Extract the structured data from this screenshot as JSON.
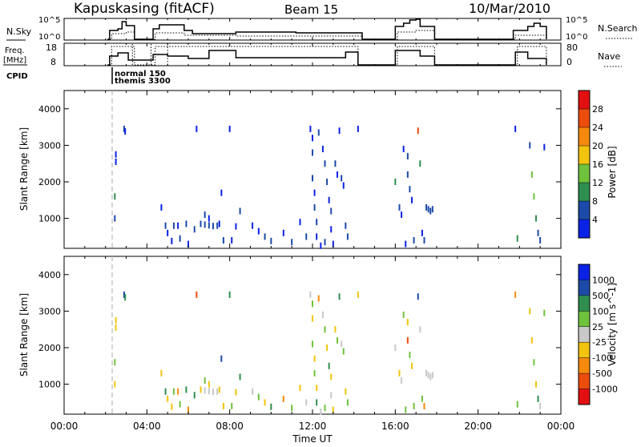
{
  "header": {
    "station": "Kapuskasing (fitACF)",
    "beam": "Beam 15",
    "date": "10/Mar/2010"
  },
  "summary": {
    "nsky_label": "N.Sky",
    "nsky_ticks": [
      "10^5",
      "10^0"
    ],
    "nsearch_label": "N.Search",
    "nsearch_ticks": [
      "10^5",
      "10^0"
    ],
    "freq_label": "Freq.",
    "freq_unit": "[MHz]",
    "freq_ticks": [
      "18",
      "8"
    ],
    "nave_label": "Nave",
    "nave_ticks": [
      "80",
      "0"
    ],
    "cpid_label": "CPID",
    "cpid_entries": [
      "normal 150",
      "themis 3300"
    ]
  },
  "colors": {
    "power": [
      "#0b22e6",
      "#1c4aa8",
      "#2e8f4f",
      "#6fc23b",
      "#f2c40f",
      "#f58a0c",
      "#ec4c0c",
      "#e21010"
    ],
    "velocity": [
      "#e21010",
      "#ec4c0c",
      "#f58a0c",
      "#f2c40f",
      "#c8c8c8",
      "#6fc23b",
      "#2e8f4f",
      "#1c4aa8",
      "#0b22e6"
    ]
  },
  "chart_data": [
    {
      "type": "heatmap",
      "title": "",
      "xlabel": "",
      "ylabel": "Slant Range [km]",
      "xlim": [
        0,
        24
      ],
      "ylim": [
        180,
        4500
      ],
      "yticks": [
        1000,
        2000,
        3000,
        4000
      ],
      "colorbar": {
        "label": "Power [dB]",
        "ticks": [
          "4",
          "8",
          "12",
          "16",
          "20",
          "24",
          "28"
        ],
        "range": [
          0,
          30
        ]
      },
      "points": [
        [
          2.9,
          3450,
          4
        ],
        [
          2.95,
          3380,
          3
        ],
        [
          2.5,
          2750,
          2
        ],
        [
          2.5,
          2550,
          2
        ],
        [
          2.45,
          1600,
          10
        ],
        [
          2.45,
          1000,
          4
        ],
        [
          4.7,
          1300,
          3
        ],
        [
          4.9,
          800,
          4
        ],
        [
          5.0,
          600,
          3
        ],
        [
          5.3,
          800,
          4
        ],
        [
          5.5,
          800,
          3
        ],
        [
          5.9,
          850,
          4
        ],
        [
          5.2,
          380,
          3
        ],
        [
          5.6,
          450,
          4
        ],
        [
          6.0,
          300,
          3
        ],
        [
          6.3,
          700,
          4
        ],
        [
          6.6,
          850,
          5
        ],
        [
          6.8,
          830,
          6
        ],
        [
          7.0,
          810,
          5
        ],
        [
          7.2,
          790,
          6
        ],
        [
          7.4,
          800,
          5
        ],
        [
          7.5,
          850,
          3
        ],
        [
          7.0,
          1000,
          3
        ],
        [
          6.8,
          1100,
          4
        ],
        [
          7.6,
          1700,
          3
        ],
        [
          7.7,
          400,
          4
        ],
        [
          8.1,
          400,
          3
        ],
        [
          8.3,
          780,
          3
        ],
        [
          6.4,
          3450,
          3
        ],
        [
          8.0,
          3450,
          2
        ],
        [
          8.5,
          1200,
          4
        ],
        [
          9.1,
          800,
          3
        ],
        [
          9.4,
          650,
          3
        ],
        [
          9.7,
          500,
          4
        ],
        [
          10.0,
          380,
          5
        ],
        [
          10.6,
          600,
          3
        ],
        [
          11.0,
          350,
          4
        ],
        [
          11.4,
          900,
          3
        ],
        [
          11.7,
          500,
          4
        ],
        [
          11.9,
          3450,
          2
        ],
        [
          12.0,
          3200,
          3
        ],
        [
          12.0,
          2800,
          4
        ],
        [
          12.0,
          2100,
          5
        ],
        [
          12.1,
          1700,
          3
        ],
        [
          12.1,
          1300,
          4
        ],
        [
          12.2,
          900,
          5
        ],
        [
          12.2,
          500,
          3
        ],
        [
          12.3,
          3350,
          4
        ],
        [
          12.5,
          2900,
          3
        ],
        [
          12.6,
          2500,
          4
        ],
        [
          12.7,
          2000,
          5
        ],
        [
          12.8,
          1500,
          3
        ],
        [
          12.9,
          1200,
          4
        ],
        [
          12.9,
          700,
          3
        ],
        [
          13.1,
          2500,
          4
        ],
        [
          13.2,
          2200,
          3
        ],
        [
          13.4,
          2100,
          5
        ],
        [
          13.5,
          1900,
          3
        ],
        [
          13.6,
          800,
          4
        ],
        [
          13.7,
          500,
          6
        ],
        [
          13.3,
          3400,
          2
        ],
        [
          14.2,
          3450,
          3
        ],
        [
          12.4,
          250,
          3
        ],
        [
          12.6,
          350,
          4
        ],
        [
          13.0,
          300,
          3
        ],
        [
          16.0,
          2000,
          8
        ],
        [
          16.2,
          1300,
          4
        ],
        [
          16.4,
          2900,
          3
        ],
        [
          16.6,
          2700,
          4
        ],
        [
          16.6,
          2200,
          6
        ],
        [
          16.7,
          1800,
          5
        ],
        [
          16.8,
          1500,
          3
        ],
        [
          16.9,
          400,
          4
        ],
        [
          17.1,
          3400,
          24
        ],
        [
          17.2,
          2500,
          10
        ],
        [
          17.3,
          600,
          3
        ],
        [
          17.4,
          400,
          4
        ],
        [
          17.6,
          1250,
          6
        ],
        [
          17.7,
          1200,
          5
        ],
        [
          17.8,
          1250,
          6
        ],
        [
          17.5,
          1300,
          5
        ],
        [
          16.3,
          1100,
          2
        ],
        [
          16.5,
          300,
          3
        ],
        [
          21.8,
          3450,
          3
        ],
        [
          21.9,
          450,
          10
        ],
        [
          22.5,
          3000,
          4
        ],
        [
          22.6,
          2200,
          12
        ],
        [
          22.7,
          1600,
          14
        ],
        [
          22.8,
          1000,
          8
        ],
        [
          22.9,
          600,
          6
        ],
        [
          23.0,
          400,
          4
        ],
        [
          23.2,
          2950,
          3
        ]
      ]
    },
    {
      "type": "heatmap",
      "title": "",
      "xlabel": "Time UT",
      "ylabel": "Slant Range [km]",
      "xlim": [
        0,
        24
      ],
      "ylim": [
        180,
        4500
      ],
      "yticks": [
        1000,
        2000,
        3000,
        4000
      ],
      "xticks": [
        "00:00",
        "04:00",
        "08:00",
        "12:00",
        "16:00",
        "20:00",
        "00:00"
      ],
      "colorbar": {
        "label": "Velocity [m s^-1]",
        "ticks": [
          "-1000",
          "-500",
          "-100",
          "-25",
          "25",
          "100",
          "500",
          "1000"
        ],
        "range": [
          -1500,
          1500
        ]
      },
      "points": [
        [
          2.9,
          3450,
          900
        ],
        [
          2.95,
          3380,
          700
        ],
        [
          2.5,
          2750,
          -500
        ],
        [
          2.5,
          2550,
          -400
        ],
        [
          2.45,
          1600,
          200
        ],
        [
          2.45,
          1000,
          -300
        ],
        [
          4.7,
          1300,
          -200
        ],
        [
          4.9,
          800,
          600
        ],
        [
          5.0,
          600,
          -400
        ],
        [
          5.3,
          800,
          300
        ],
        [
          5.5,
          800,
          -700
        ],
        [
          5.9,
          850,
          500
        ],
        [
          5.2,
          380,
          -300
        ],
        [
          5.6,
          450,
          200
        ],
        [
          6.0,
          300,
          -600
        ],
        [
          6.3,
          700,
          800
        ],
        [
          6.6,
          850,
          -200
        ],
        [
          6.8,
          830,
          -150
        ],
        [
          7.0,
          810,
          50
        ],
        [
          7.2,
          790,
          -80
        ],
        [
          7.4,
          800,
          120
        ],
        [
          7.5,
          850,
          -500
        ],
        [
          7.0,
          1000,
          -300
        ],
        [
          6.8,
          1100,
          400
        ],
        [
          7.6,
          1700,
          900
        ],
        [
          7.7,
          400,
          -400
        ],
        [
          8.1,
          400,
          300
        ],
        [
          8.3,
          780,
          -200
        ],
        [
          6.4,
          3450,
          -900
        ],
        [
          8.0,
          3450,
          700
        ],
        [
          8.5,
          1200,
          500
        ],
        [
          9.1,
          800,
          -100
        ],
        [
          9.4,
          650,
          300
        ],
        [
          9.7,
          500,
          -200
        ],
        [
          10.0,
          380,
          600
        ],
        [
          10.6,
          600,
          -700
        ],
        [
          11.0,
          350,
          200
        ],
        [
          11.4,
          900,
          -300
        ],
        [
          11.7,
          500,
          100
        ],
        [
          11.9,
          3450,
          -100
        ],
        [
          12.0,
          3200,
          400
        ],
        [
          12.0,
          2800,
          -300
        ],
        [
          12.0,
          2100,
          200
        ],
        [
          12.1,
          1700,
          -500
        ],
        [
          12.1,
          1300,
          300
        ],
        [
          12.2,
          900,
          -200
        ],
        [
          12.2,
          500,
          800
        ],
        [
          12.3,
          3350,
          -600
        ],
        [
          12.5,
          2900,
          -150
        ],
        [
          12.6,
          2500,
          250
        ],
        [
          12.7,
          2000,
          -400
        ],
        [
          12.8,
          1500,
          500
        ],
        [
          12.9,
          1200,
          -300
        ],
        [
          12.9,
          700,
          100
        ],
        [
          13.1,
          2500,
          -300
        ],
        [
          13.2,
          2200,
          200
        ],
        [
          13.4,
          2100,
          -100
        ],
        [
          13.5,
          1900,
          400
        ],
        [
          13.6,
          800,
          -500
        ],
        [
          13.7,
          500,
          300
        ],
        [
          13.3,
          3400,
          600
        ],
        [
          14.2,
          3450,
          -200
        ],
        [
          12.4,
          250,
          -100
        ],
        [
          12.6,
          350,
          200
        ],
        [
          13.0,
          300,
          -400
        ],
        [
          16.0,
          2000,
          50
        ],
        [
          16.2,
          1300,
          -400
        ],
        [
          16.4,
          2900,
          300
        ],
        [
          16.6,
          2700,
          -200
        ],
        [
          16.6,
          2200,
          -900
        ],
        [
          16.7,
          1800,
          400
        ],
        [
          16.8,
          1500,
          -300
        ],
        [
          16.9,
          400,
          200
        ],
        [
          17.1,
          3400,
          900
        ],
        [
          17.2,
          2500,
          -150
        ],
        [
          17.3,
          600,
          300
        ],
        [
          17.4,
          400,
          -600
        ],
        [
          17.6,
          1250,
          10
        ],
        [
          17.7,
          1200,
          -15
        ],
        [
          17.8,
          1250,
          5
        ],
        [
          17.5,
          1300,
          20
        ],
        [
          16.3,
          1100,
          -50
        ],
        [
          16.5,
          300,
          400
        ],
        [
          21.8,
          3450,
          -700
        ],
        [
          21.9,
          450,
          300
        ],
        [
          22.5,
          3000,
          -200
        ],
        [
          22.6,
          2200,
          -400
        ],
        [
          22.7,
          1600,
          200
        ],
        [
          22.8,
          1000,
          -300
        ],
        [
          22.9,
          600,
          500
        ],
        [
          23.0,
          400,
          -100
        ],
        [
          23.2,
          2950,
          300
        ]
      ]
    }
  ]
}
